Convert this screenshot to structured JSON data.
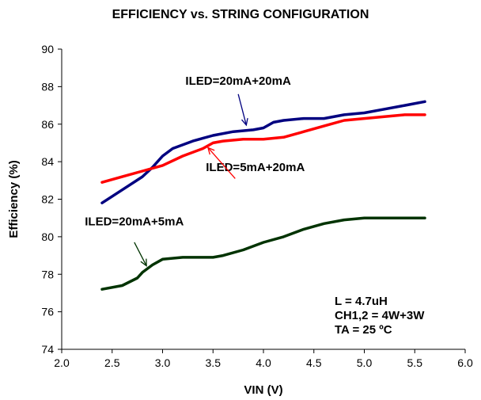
{
  "chart_data": {
    "type": "line",
    "title": "EFFICIENCY vs. STRING CONFIGURATION",
    "xlabel": "VIN (V)",
    "ylabel": "Efficiency (%)",
    "xlim": [
      2.0,
      6.0
    ],
    "ylim": [
      74,
      90
    ],
    "x_ticks": [
      "2.0",
      "2.5",
      "3.0",
      "3.5",
      "4.0",
      "4.5",
      "5.0",
      "5.5",
      "6.0"
    ],
    "y_ticks": [
      "74",
      "76",
      "78",
      "80",
      "82",
      "84",
      "86",
      "88",
      "90"
    ],
    "grid": false,
    "series": [
      {
        "name": "ILED=20mA+20mA",
        "color": "#000080",
        "points": [
          [
            2.4,
            81.8
          ],
          [
            2.6,
            82.5
          ],
          [
            2.8,
            83.2
          ],
          [
            2.9,
            83.7
          ],
          [
            3.0,
            84.3
          ],
          [
            3.1,
            84.7
          ],
          [
            3.3,
            85.1
          ],
          [
            3.5,
            85.4
          ],
          [
            3.7,
            85.6
          ],
          [
            3.9,
            85.7
          ],
          [
            4.0,
            85.8
          ],
          [
            4.1,
            86.1
          ],
          [
            4.2,
            86.2
          ],
          [
            4.4,
            86.3
          ],
          [
            4.6,
            86.3
          ],
          [
            4.8,
            86.5
          ],
          [
            5.0,
            86.6
          ],
          [
            5.2,
            86.8
          ],
          [
            5.4,
            87.0
          ],
          [
            5.6,
            87.2
          ]
        ]
      },
      {
        "name": "ILED=5mA+20mA",
        "color": "#ff0000",
        "points": [
          [
            2.4,
            82.9
          ],
          [
            2.6,
            83.2
          ],
          [
            2.8,
            83.5
          ],
          [
            3.0,
            83.8
          ],
          [
            3.2,
            84.3
          ],
          [
            3.4,
            84.7
          ],
          [
            3.5,
            85.0
          ],
          [
            3.6,
            85.1
          ],
          [
            3.8,
            85.2
          ],
          [
            3.9,
            85.2
          ],
          [
            4.0,
            85.2
          ],
          [
            4.2,
            85.3
          ],
          [
            4.4,
            85.6
          ],
          [
            4.6,
            85.9
          ],
          [
            4.8,
            86.2
          ],
          [
            5.0,
            86.3
          ],
          [
            5.2,
            86.4
          ],
          [
            5.4,
            86.5
          ],
          [
            5.6,
            86.5
          ]
        ]
      },
      {
        "name": "ILED=20mA+5mA",
        "color": "#003300",
        "points": [
          [
            2.4,
            77.2
          ],
          [
            2.6,
            77.4
          ],
          [
            2.75,
            77.8
          ],
          [
            2.8,
            78.1
          ],
          [
            2.9,
            78.5
          ],
          [
            3.0,
            78.8
          ],
          [
            3.2,
            78.9
          ],
          [
            3.3,
            78.9
          ],
          [
            3.5,
            78.9
          ],
          [
            3.6,
            79.0
          ],
          [
            3.8,
            79.3
          ],
          [
            4.0,
            79.7
          ],
          [
            4.2,
            80.0
          ],
          [
            4.4,
            80.4
          ],
          [
            4.6,
            80.7
          ],
          [
            4.8,
            80.9
          ],
          [
            5.0,
            81.0
          ],
          [
            5.2,
            81.0
          ],
          [
            5.4,
            81.0
          ],
          [
            5.6,
            81.0
          ]
        ]
      }
    ],
    "annotations": [
      {
        "text": "ILED=20mA+20mA",
        "series": 0,
        "label_x": 3.75,
        "label_y": 88.1,
        "arrow_from": [
          3.75,
          87.6
        ],
        "arrow_to": [
          3.83,
          85.95
        ]
      },
      {
        "text": "ILED=5mA+20mA",
        "series": 1,
        "label_x": 3.92,
        "label_y": 83.5,
        "arrow_from": [
          3.72,
          83.1
        ],
        "arrow_to": [
          3.45,
          84.75
        ]
      },
      {
        "text": "ILED=20mA+5mA",
        "series": 2,
        "label_x": 2.72,
        "label_y": 80.6,
        "arrow_from": [
          2.72,
          79.7
        ],
        "arrow_to": [
          2.84,
          78.45
        ]
      }
    ],
    "conditions": [
      "L = 4.7uH",
      "CH1,2 = 4W+3W",
      "TA = 25 ºC"
    ]
  }
}
